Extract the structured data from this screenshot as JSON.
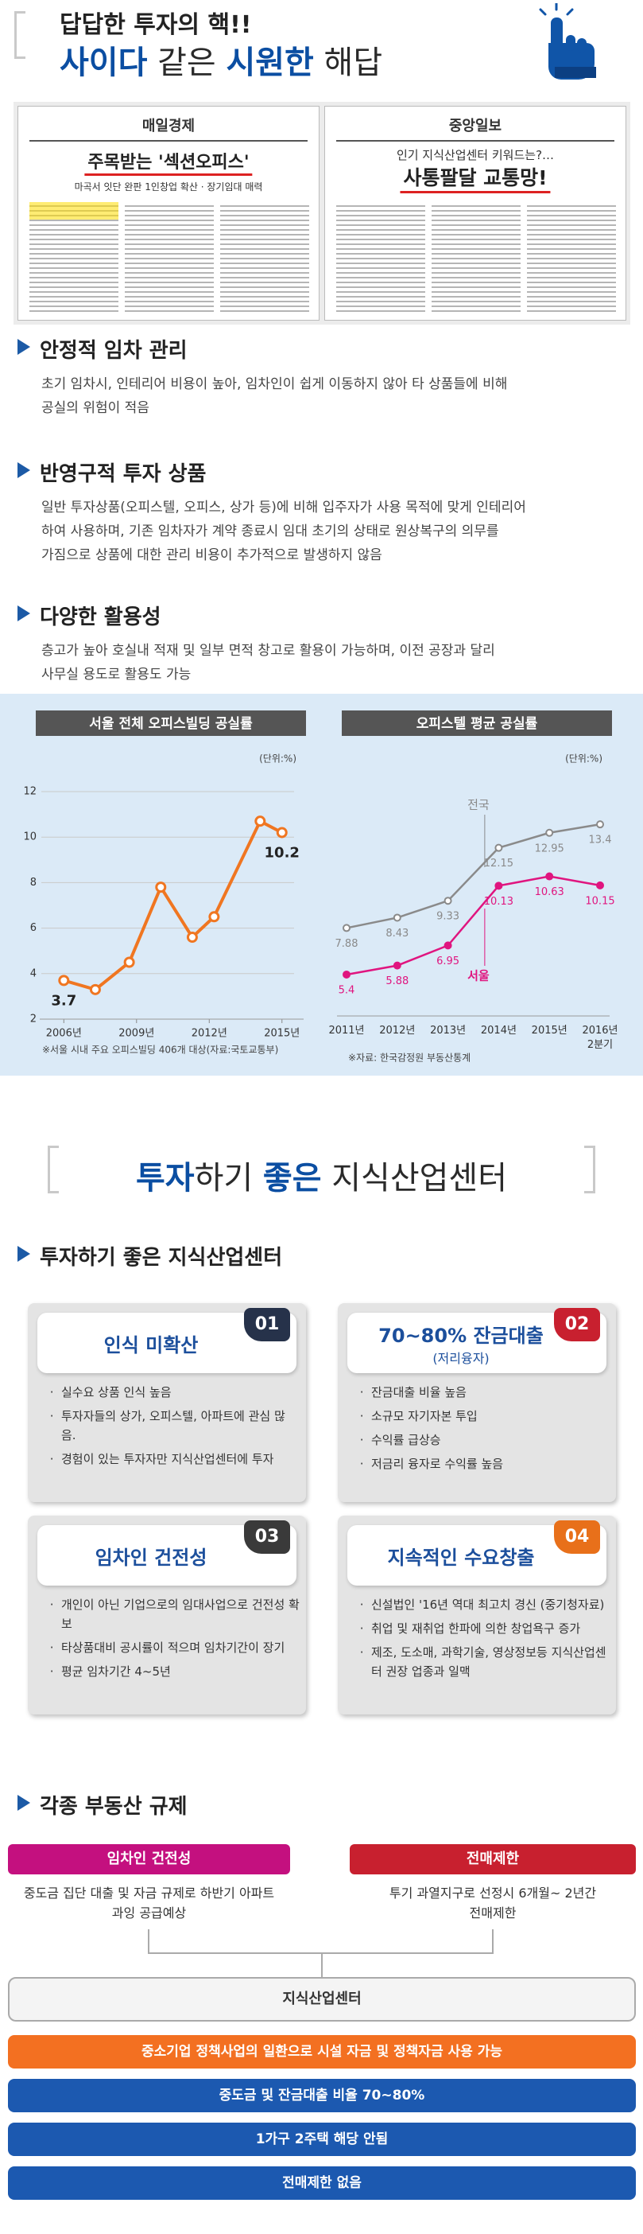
{
  "header": {
    "line1": "답답한 투자의 핵!!",
    "line2": [
      {
        "text": "사이다",
        "bold": true
      },
      {
        "text": " 같은 ",
        "bold": false
      },
      {
        "text": "시원한",
        "bold": true
      },
      {
        "text": " 해답",
        "bold": false
      }
    ]
  },
  "news": [
    {
      "paper": "매일경제",
      "headline": "주목받는 '섹션오피스'",
      "subhead": "마곡서 잇단 완판 1인창업 확산 · 장기임대 매력"
    },
    {
      "paper": "중앙일보",
      "kicker": "인기 지식산업센터 키워드는?…",
      "headline": "사통팔달 교통망!"
    }
  ],
  "sections": [
    {
      "title": "안정적 임차 관리",
      "lines": [
        "초기 임차시, 인테리어 비용이 높아, 임차인이 쉽게 이동하지 않아 타 상품들에 비해",
        "공실의 위험이 적음"
      ]
    },
    {
      "title": "반영구적 투자 상품",
      "lines": [
        "일반 투자상품(오피스텔, 오피스, 상가 등)에 비해 입주자가 사용 목적에 맞게 인테리어",
        "하여 사용하며, 기존 임차자가 계약 종료시 임대 초기의 상태로 원상복구의 의무를",
        "가짐으로 상품에 대한 관리 비용이 추가적으로 발생하지 않음"
      ]
    },
    {
      "title": "다양한 활용성",
      "lines": [
        "층고가 높아 호실내 적재 및 일부 면적 창고로 활용이 가능하며, 이전 공장과 달리",
        "사무실 용도로 활용도 가능"
      ]
    }
  ],
  "chart_data": [
    {
      "type": "line",
      "title": "서울 전체 오피스빌딩 공실률",
      "y_label": "(단위:%)",
      "note": "※서울 시내 주요 오피스빌딩 406개 대상(자료:국토교통부)",
      "x": [
        2006,
        2007.3,
        2008.7,
        2010,
        2011.3,
        2012.2,
        2014.1,
        2015
      ],
      "series": [
        {
          "name": null,
          "color": "#f07621",
          "values": [
            3.7,
            3.3,
            4.5,
            7.8,
            5.6,
            6.5,
            10.7,
            10.2
          ],
          "value_labels": [
            "3.7",
            null,
            null,
            null,
            null,
            null,
            null,
            "10.2"
          ]
        }
      ],
      "xlim": [
        2005.4,
        2015.5
      ],
      "xticks": [
        {
          "value": 2006,
          "label": "2006년"
        },
        {
          "value": 2009,
          "label": "2009년"
        },
        {
          "value": 2012,
          "label": "2012년"
        },
        {
          "value": 2015,
          "label": "2015년"
        }
      ],
      "ylim": [
        2,
        12
      ],
      "yticks": [
        2,
        4,
        6,
        8,
        10,
        12
      ],
      "grid": true
    },
    {
      "type": "line",
      "title": "오피스텔 평균 공실률",
      "y_label": "(단위:%)",
      "note": "※자료: 한국감정원 부동산통계",
      "categories": [
        "2011년",
        "2012년",
        "2013년",
        "2014년",
        "2015년",
        "2016년 2분기"
      ],
      "series": [
        {
          "name": "전국",
          "color": "#8a8a8a",
          "values": [
            7.88,
            8.43,
            9.33,
            12.15,
            12.95,
            13.4
          ]
        },
        {
          "name": "서울",
          "color": "#e0157f",
          "values": [
            5.4,
            5.88,
            6.95,
            10.13,
            10.63,
            10.15
          ]
        }
      ],
      "ylim": [
        4,
        14
      ],
      "show_values": true,
      "grid": false
    }
  ],
  "invest": {
    "title": [
      {
        "text": "투자",
        "bold": true
      },
      {
        "text": "하기 ",
        "bold": false
      },
      {
        "text": "좋은",
        "bold": true
      },
      {
        "text": " 지식산업센터",
        "bold": false
      }
    ],
    "subtitle": "투자하기 좋은 지식산업센터",
    "cards": [
      {
        "number": "01",
        "color": "#26324a",
        "title": "인식 미확산",
        "items": [
          "실수요 상품 인식 높음",
          "투자자들의 상가, 오피스텔, 아파트에 관심 많음.",
          "경험이 있는 투자자만 지식산업센터에 투자"
        ]
      },
      {
        "number": "02",
        "color": "#c8202f",
        "title": "70~80% 잔금대출",
        "note": "(저리융자)",
        "items": [
          "잔금대출 비율 높음",
          "소규모 자기자본 투입",
          "수익률 급상승",
          "저금리 융자로 수익률 높음"
        ]
      },
      {
        "number": "03",
        "color": "#3a3a3a",
        "title": "임차인 건전성",
        "items": [
          "개인이 아닌 기업으로의 임대사업으로 건전성 확보",
          "타상품대비 공시률이 적으며 임차기간이 장기",
          "평균 임차기간 4~5년"
        ]
      },
      {
        "number": "04",
        "color": "#e8701a",
        "title": "지속적인 수요창출",
        "items": [
          "신설법인 '16년 역대 최고치 경신 (중기청자료)",
          "취업 및 재취업 한파에 의한 창업욕구 증가",
          "제조, 도소매, 과학기술, 영상정보등 지식산업센터 권장 업종과 일맥"
        ]
      }
    ]
  },
  "regulation": {
    "title": "각종 부동산 규제",
    "boxes": [
      {
        "label": "임차인 건전성",
        "color": "#c4107f",
        "lines": [
          "중도금 집단 대출 및 자금 규제로 하반기 아파트",
          "과잉 공급예상"
        ]
      },
      {
        "label": "전매제한",
        "color": "#c8202f",
        "lines": [
          "투기 과열지구로 선정시 6개월~ 2년간",
          "전매제한"
        ]
      }
    ],
    "center": "지식산업센터",
    "benefits": [
      {
        "text": "중소기업 정책사업의 일환으로 시설 자금 및 정책자금 사용 가능",
        "color": "#f37021"
      },
      {
        "text": "중도금 및 잔금대출 비율 70~80%",
        "color": "#1c59b0"
      },
      {
        "text": "1가구 2주택 해당 안됨",
        "color": "#1c59b0"
      },
      {
        "text": "전매제한 없음",
        "color": "#1c59b0"
      }
    ]
  }
}
